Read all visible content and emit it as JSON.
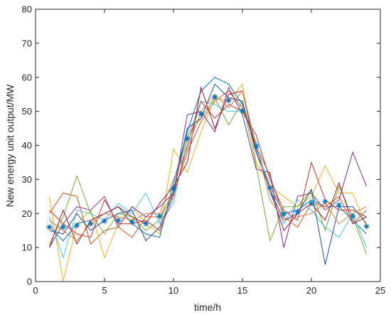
{
  "chart_data": {
    "type": "line",
    "xlabel": "time/h",
    "ylabel": "New energy unit output/MW",
    "xlim": [
      0,
      25
    ],
    "ylim": [
      0,
      80
    ],
    "xticks": [
      0,
      5,
      10,
      15,
      20,
      25
    ],
    "yticks": [
      0,
      10,
      20,
      30,
      40,
      50,
      60,
      70,
      80
    ],
    "grid": false,
    "x": [
      1,
      2,
      3,
      4,
      5,
      6,
      7,
      8,
      9,
      10,
      11,
      12,
      13,
      14,
      15,
      16,
      17,
      18,
      19,
      20,
      21,
      22,
      23,
      24
    ],
    "series": [
      {
        "color": "#0072BD",
        "values": [
          16,
          12,
          17,
          18,
          20,
          22,
          17,
          14,
          13,
          29,
          44,
          56,
          60,
          58,
          52,
          39,
          28,
          20,
          21,
          24,
          22,
          22,
          18,
          14
        ]
      },
      {
        "color": "#D95319",
        "values": [
          20,
          26,
          25,
          11,
          15,
          16,
          13,
          19,
          19,
          26,
          38,
          47,
          53,
          56,
          51,
          40,
          31,
          19,
          16,
          23,
          22,
          25,
          17,
          21
        ]
      },
      {
        "color": "#EDB120",
        "values": [
          25,
          0,
          17,
          21,
          7,
          17,
          22,
          17,
          14,
          39,
          32,
          44,
          54,
          53,
          58,
          35,
          28,
          25,
          22,
          25,
          34,
          26,
          26,
          16
        ]
      },
      {
        "color": "#7E2F8E",
        "values": [
          10,
          17,
          22,
          21,
          25,
          16,
          22,
          19,
          22,
          26,
          49,
          50,
          44,
          57,
          49,
          33,
          32,
          10,
          25,
          26,
          21,
          24,
          38,
          28
        ]
      },
      {
        "color": "#77AC30",
        "values": [
          11,
          19,
          31,
          20,
          14,
          20,
          19,
          15,
          18,
          27,
          43,
          48,
          54,
          46,
          53,
          34,
          12,
          22,
          22,
          27,
          15,
          28,
          19,
          8
        ]
      },
      {
        "color": "#4DBEEE",
        "values": [
          19,
          7,
          21,
          20,
          18,
          23,
          20,
          26,
          17,
          23,
          42,
          53,
          52,
          50,
          50,
          41,
          26,
          17,
          24,
          21,
          16,
          13,
          20,
          10
        ]
      },
      {
        "color": "#A2142F",
        "values": [
          10,
          21,
          11,
          18,
          20,
          22,
          19,
          17,
          23,
          28,
          35,
          57,
          45,
          55,
          56,
          38,
          27,
          15,
          20,
          23,
          18,
          29,
          17,
          19
        ]
      },
      {
        "color": "#C0392B",
        "values": [
          21,
          17,
          14,
          13,
          24,
          17,
          17,
          18,
          15,
          25,
          40,
          53,
          48,
          52,
          50,
          43,
          30,
          21,
          18,
          35,
          24,
          21,
          21,
          19
        ]
      },
      {
        "color": "#1F4E9E",
        "values": [
          15,
          14,
          20,
          15,
          18,
          20,
          21,
          12,
          16,
          26,
          45,
          48,
          58,
          54,
          53,
          38,
          27,
          18,
          20,
          27,
          5,
          22,
          22,
          17
        ]
      },
      {
        "color": "#E07B39",
        "values": [
          18,
          15,
          12,
          17,
          20,
          19,
          18,
          20,
          20,
          30,
          39,
          50,
          55,
          51,
          56,
          40,
          24,
          18,
          19,
          20,
          23,
          17,
          20,
          22
        ]
      }
    ],
    "markers": {
      "style": "asterisk",
      "color": "#0072BD",
      "values": [
        16,
        16,
        16.5,
        17,
        17.8,
        18,
        17.5,
        17,
        19.2,
        27.3,
        42,
        49.2,
        54.2,
        53.2,
        50.2,
        39.8,
        27.6,
        19.8,
        20.5,
        23,
        23.5,
        22.5,
        19.2,
        16.2
      ]
    }
  }
}
